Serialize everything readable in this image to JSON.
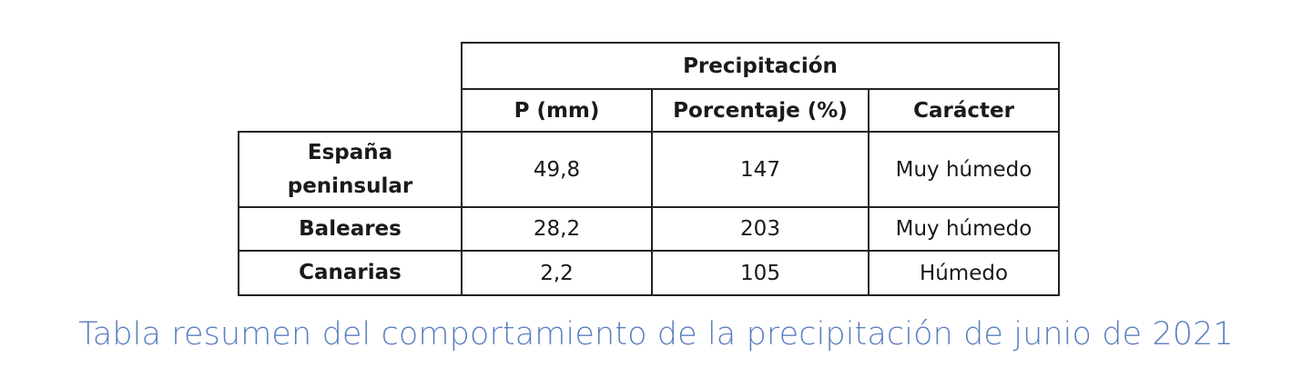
{
  "table": {
    "group_header": "Precipitación",
    "columns": [
      "P (mm)",
      "Porcentaje (%)",
      "Carácter"
    ],
    "rows": [
      {
        "region": "España peninsular",
        "p_mm": "49,8",
        "porcentaje": "147",
        "caracter": "Muy húmedo"
      },
      {
        "region": "Baleares",
        "p_mm": "28,2",
        "porcentaje": "203",
        "caracter": "Muy húmedo"
      },
      {
        "region": "Canarias",
        "p_mm": "2,2",
        "porcentaje": "105",
        "caracter": "Húmedo"
      }
    ]
  },
  "caption": "Tabla resumen del comportamiento de la precipitación de junio de 2021"
}
